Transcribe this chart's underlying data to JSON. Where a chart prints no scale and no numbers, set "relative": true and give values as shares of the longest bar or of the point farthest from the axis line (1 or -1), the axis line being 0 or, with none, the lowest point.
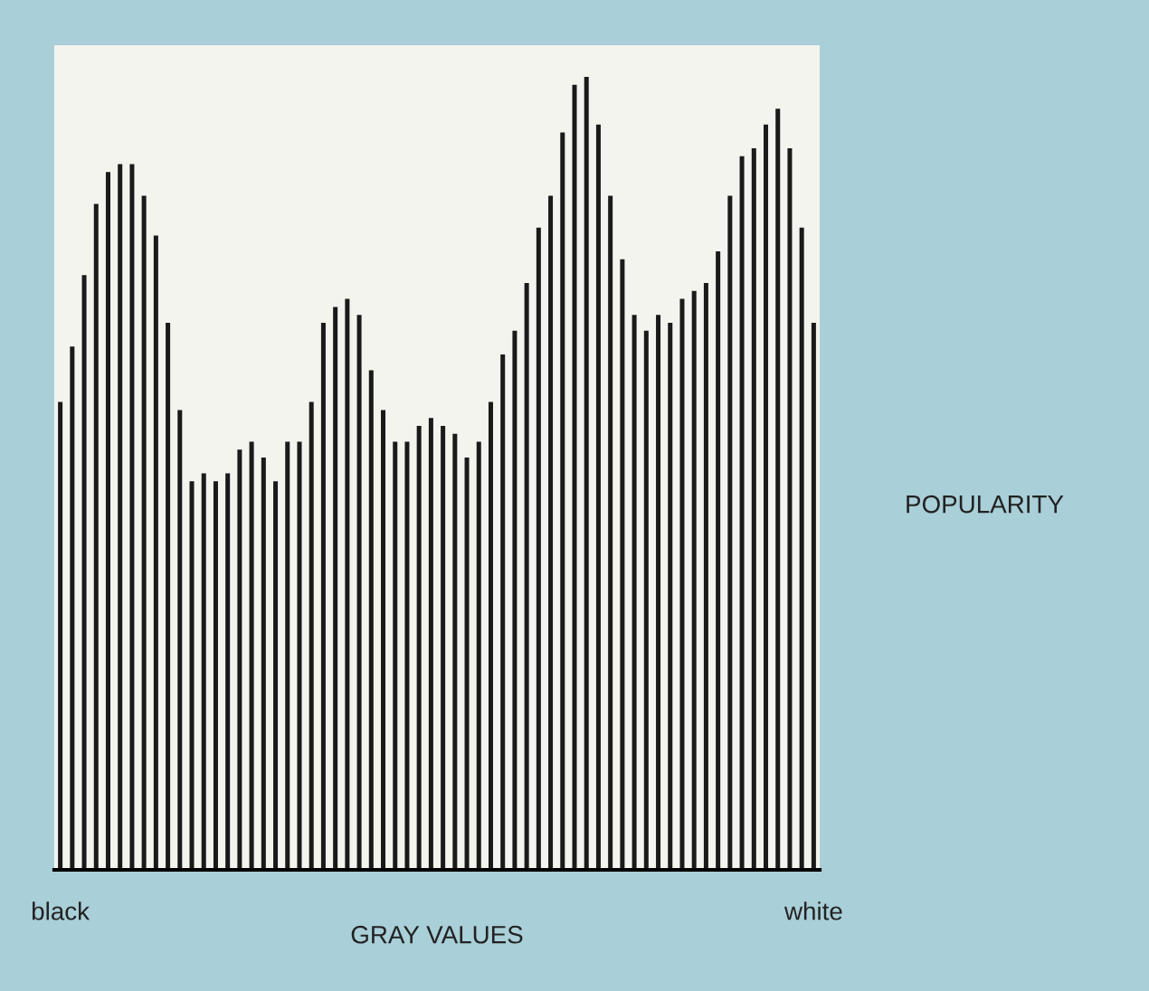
{
  "chart_data": {
    "type": "bar",
    "relative": true,
    "xlabel": "GRAY VALUES",
    "ylabel": "POPULARITY",
    "categories": [
      "black",
      null,
      null,
      null,
      null,
      null,
      null,
      null,
      null,
      null,
      null,
      null,
      null,
      null,
      null,
      null,
      null,
      null,
      null,
      null,
      null,
      null,
      null,
      null,
      null,
      null,
      null,
      null,
      null,
      null,
      null,
      null,
      null,
      null,
      null,
      null,
      null,
      null,
      null,
      null,
      null,
      null,
      null,
      null,
      null,
      null,
      null,
      null,
      null,
      null,
      null,
      null,
      null,
      null,
      null,
      null,
      null,
      null,
      null,
      null,
      null,
      null,
      null,
      "white"
    ],
    "values": [
      0.59,
      0.66,
      0.75,
      0.84,
      0.88,
      0.89,
      0.89,
      0.85,
      0.8,
      0.69,
      0.58,
      0.49,
      0.5,
      0.49,
      0.5,
      0.53,
      0.54,
      0.52,
      0.49,
      0.54,
      0.54,
      0.59,
      0.69,
      0.71,
      0.72,
      0.7,
      0.63,
      0.58,
      0.54,
      0.54,
      0.56,
      0.57,
      0.56,
      0.55,
      0.52,
      0.54,
      0.59,
      0.65,
      0.68,
      0.74,
      0.81,
      0.85,
      0.93,
      0.99,
      1,
      0.94,
      0.85,
      0.77,
      0.7,
      0.68,
      0.7,
      0.69,
      0.72,
      0.73,
      0.74,
      0.78,
      0.85,
      0.9,
      0.91,
      0.94,
      0.96,
      0.91,
      0.81,
      0.69
    ],
    "color": "#1a1a1a"
  }
}
